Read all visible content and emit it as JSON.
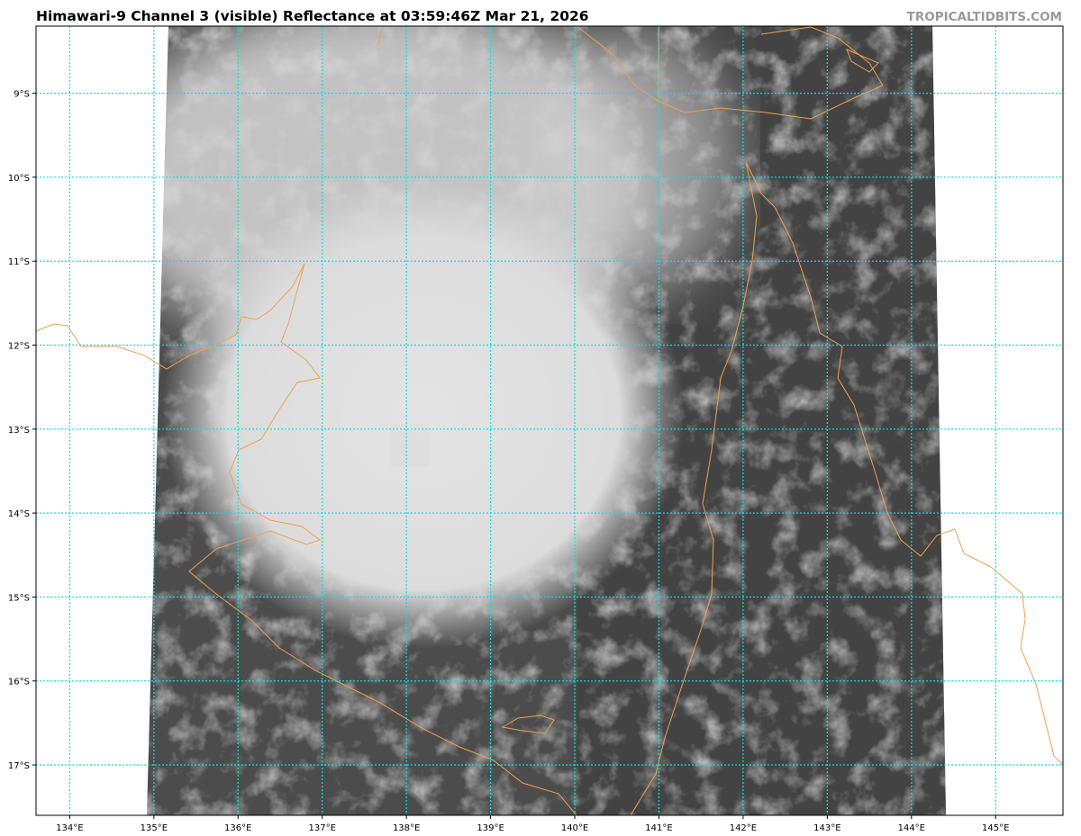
{
  "title": "Himawari-9 Channel 3 (visible) Reflectance at 03:59:46Z Mar 21, 2026",
  "credit": "TROPICALTIDBITS.COM",
  "map": {
    "lon_range": [
      133.6,
      145.8
    ],
    "lat_range": [
      -17.6,
      -8.2
    ],
    "lon_ticks": [
      {
        "value": 134,
        "label": "134°E"
      },
      {
        "value": 135,
        "label": "135°E"
      },
      {
        "value": 136,
        "label": "136°E"
      },
      {
        "value": 137,
        "label": "137°E"
      },
      {
        "value": 138,
        "label": "138°E"
      },
      {
        "value": 139,
        "label": "139°E"
      },
      {
        "value": 140,
        "label": "140°E"
      },
      {
        "value": 141,
        "label": "141°E"
      },
      {
        "value": 142,
        "label": "142°E"
      },
      {
        "value": 143,
        "label": "143°E"
      },
      {
        "value": 144,
        "label": "144°E"
      },
      {
        "value": 145,
        "label": "145°E"
      }
    ],
    "lat_ticks": [
      {
        "value": -9,
        "label": "9°S"
      },
      {
        "value": -10,
        "label": "10°S"
      },
      {
        "value": -11,
        "label": "11°S"
      },
      {
        "value": -12,
        "label": "12°S"
      },
      {
        "value": -13,
        "label": "13°S"
      },
      {
        "value": -14,
        "label": "14°S"
      },
      {
        "value": -15,
        "label": "15°S"
      },
      {
        "value": -16,
        "label": "16°S"
      },
      {
        "value": -17,
        "label": "17°S"
      }
    ],
    "colors": {
      "gridline": "#00e5e5",
      "coastline": "#f0a050",
      "imagery_dark": "#4a4a4a",
      "cloud": "#e8e8e8"
    }
  }
}
